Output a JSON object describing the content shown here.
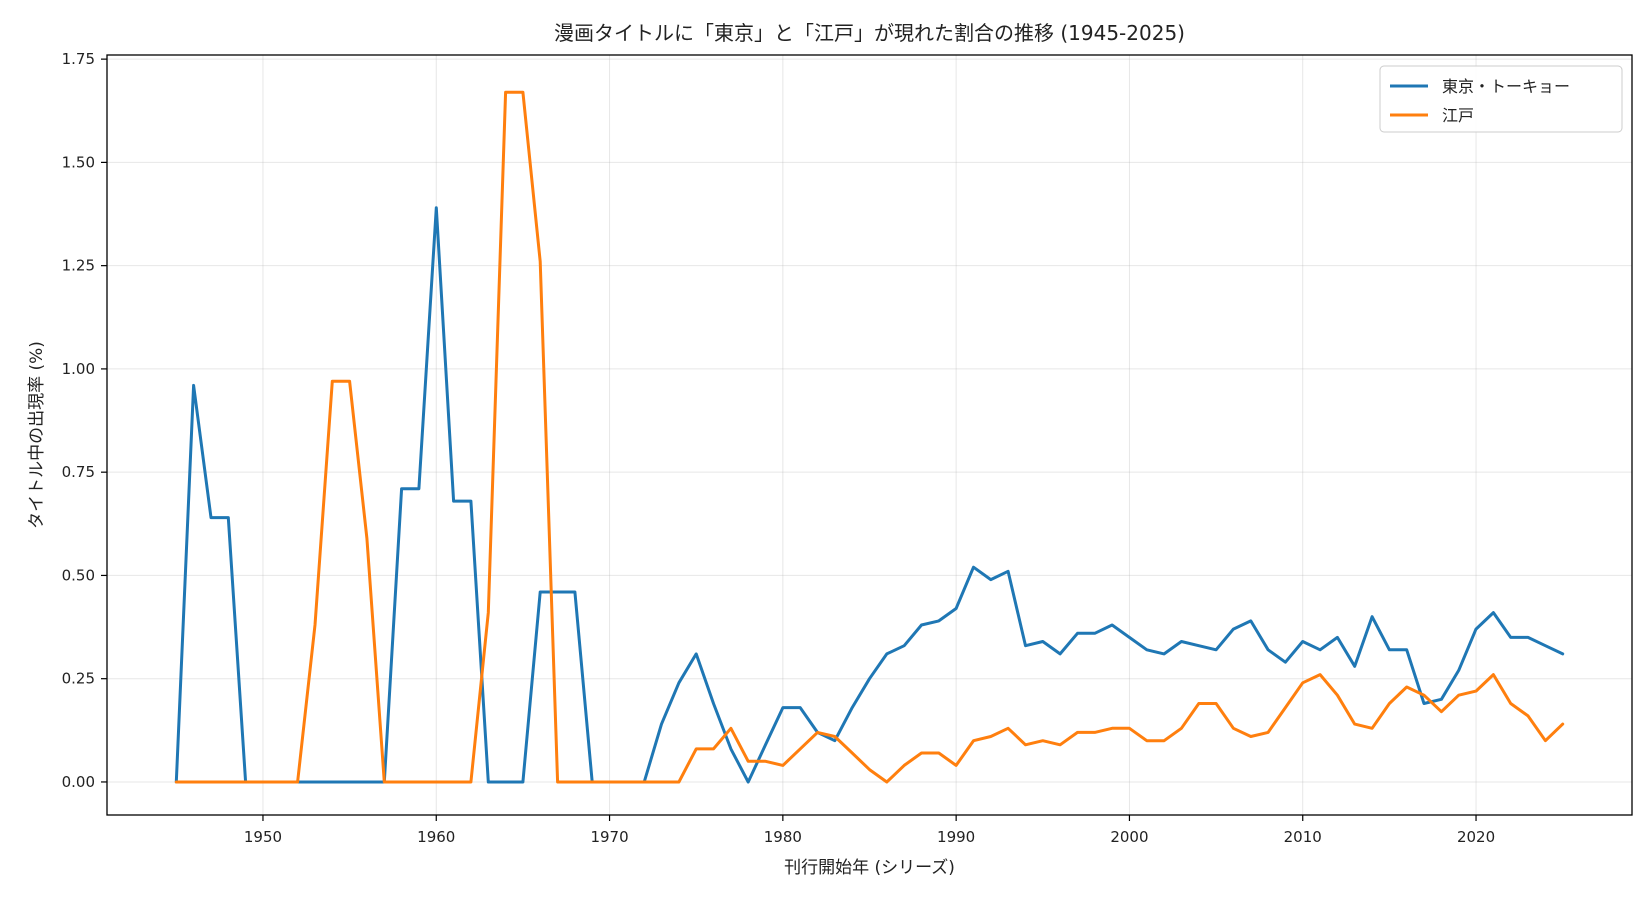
{
  "chart_data": {
    "type": "line",
    "title": "漫画タイトルに「東京」と「江戸」が現れた割合の推移 (1945-2025)",
    "xlabel": "刊行開始年 (シリーズ)",
    "ylabel": "タイトル中の出現率 (%)",
    "xlim": [
      1941,
      2029
    ],
    "ylim": [
      -0.08,
      1.76
    ],
    "xticks": [
      1950,
      1960,
      1970,
      1980,
      1990,
      2000,
      2010,
      2020
    ],
    "yticks": [
      0.0,
      0.25,
      0.5,
      0.75,
      1.0,
      1.25,
      1.5,
      1.75
    ],
    "ytick_labels": [
      "0.00",
      "0.25",
      "0.50",
      "0.75",
      "1.00",
      "1.25",
      "1.50",
      "1.75"
    ],
    "grid": true,
    "legend_position": "top-right",
    "x": [
      1945,
      1946,
      1947,
      1948,
      1949,
      1950,
      1951,
      1952,
      1953,
      1954,
      1955,
      1956,
      1957,
      1958,
      1959,
      1960,
      1961,
      1962,
      1963,
      1964,
      1965,
      1966,
      1967,
      1968,
      1969,
      1970,
      1971,
      1972,
      1973,
      1974,
      1975,
      1976,
      1977,
      1978,
      1979,
      1980,
      1981,
      1982,
      1983,
      1984,
      1985,
      1986,
      1987,
      1988,
      1989,
      1990,
      1991,
      1992,
      1993,
      1994,
      1995,
      1996,
      1997,
      1998,
      1999,
      2000,
      2001,
      2002,
      2003,
      2004,
      2005,
      2006,
      2007,
      2008,
      2009,
      2010,
      2011,
      2012,
      2013,
      2014,
      2015,
      2016,
      2017,
      2018,
      2019,
      2020,
      2021,
      2022,
      2023,
      2024,
      2025
    ],
    "series": [
      {
        "name": "東京・トーキョー",
        "color": "#1f77b4",
        "values": [
          0,
          0.96,
          0.64,
          0.64,
          0,
          0,
          0,
          0,
          0,
          0,
          0,
          0,
          0,
          0.71,
          0.71,
          1.39,
          0.68,
          0.68,
          0,
          0,
          0,
          0.46,
          0.46,
          0.46,
          0,
          0,
          0,
          0,
          0.14,
          0.24,
          0.31,
          0.19,
          0.08,
          0,
          0.09,
          0.18,
          0.18,
          0.12,
          0.1,
          0.18,
          0.25,
          0.31,
          0.33,
          0.38,
          0.39,
          0.42,
          0.52,
          0.49,
          0.51,
          0.33,
          0.34,
          0.31,
          0.36,
          0.36,
          0.38,
          0.35,
          0.32,
          0.31,
          0.34,
          0.33,
          0.32,
          0.37,
          0.39,
          0.32,
          0.29,
          0.34,
          0.32,
          0.35,
          0.28,
          0.4,
          0.32,
          0.32,
          0.19,
          0.2,
          0.27,
          0.37,
          0.41,
          0.35,
          0.35,
          0.33,
          0.31
        ]
      },
      {
        "name": "江戸",
        "color": "#ff7f0e",
        "values": [
          0,
          0,
          0,
          0,
          0,
          0,
          0,
          0,
          0.38,
          0.97,
          0.97,
          0.59,
          0,
          0,
          0,
          0,
          0,
          0,
          0.41,
          1.67,
          1.67,
          1.26,
          0,
          0,
          0,
          0,
          0,
          0,
          0,
          0,
          0.08,
          0.08,
          0.13,
          0.05,
          0.05,
          0.04,
          0.08,
          0.12,
          0.11,
          0.07,
          0.03,
          0,
          0.04,
          0.07,
          0.07,
          0.04,
          0.1,
          0.11,
          0.13,
          0.09,
          0.1,
          0.09,
          0.12,
          0.12,
          0.13,
          0.13,
          0.1,
          0.1,
          0.13,
          0.19,
          0.19,
          0.13,
          0.11,
          0.12,
          0.18,
          0.24,
          0.26,
          0.21,
          0.14,
          0.13,
          0.19,
          0.23,
          0.21,
          0.17,
          0.21,
          0.22,
          0.26,
          0.19,
          0.16,
          0.1,
          0.14
        ]
      }
    ]
  }
}
